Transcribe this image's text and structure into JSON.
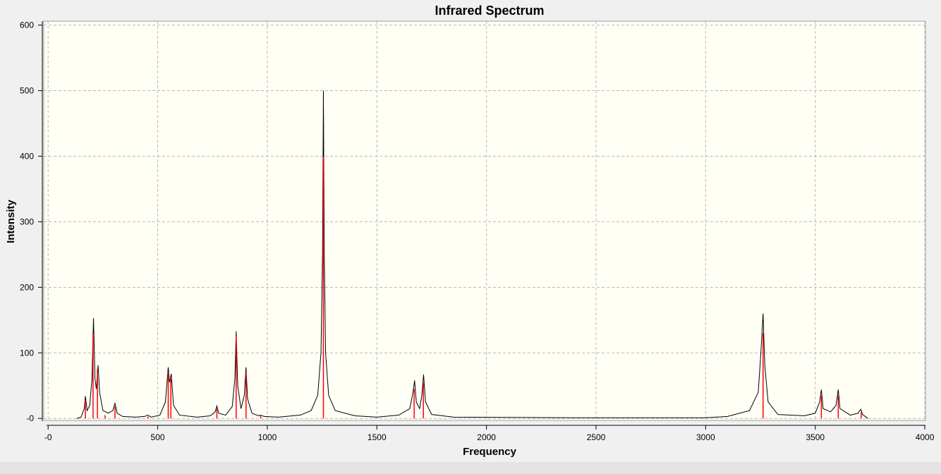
{
  "chart_data": {
    "type": "spectrum",
    "title": "Infrared Spectrum",
    "x_label": "Frequency",
    "y_label": "Intensity",
    "xlim": [
      -20,
      4003
    ],
    "ylim": [
      -3,
      606
    ],
    "xticks": [
      {
        "value": 0,
        "label": "-0"
      },
      500,
      1000,
      1500,
      2000,
      2500,
      3000,
      3500,
      4000
    ],
    "yticks": [
      {
        "value": 0,
        "label": "-0"
      },
      100,
      200,
      300,
      400,
      500,
      600
    ],
    "grid": true,
    "sticks": {
      "color": "#ff0000",
      "x": [
        170,
        205,
        225,
        260,
        305,
        455,
        548,
        560,
        770,
        858,
        903,
        970,
        1256,
        1670,
        1712,
        3262,
        3528,
        3605,
        3710
      ],
      "values": [
        28,
        130,
        75,
        5,
        18,
        3,
        70,
        60,
        15,
        125,
        70,
        4,
        400,
        45,
        55,
        130,
        35,
        35,
        10
      ]
    },
    "curve": {
      "color": "#000000",
      "x": [
        130,
        150,
        165,
        170,
        178,
        190,
        200,
        207,
        214,
        220,
        228,
        235,
        250,
        275,
        295,
        305,
        315,
        340,
        400,
        440,
        455,
        470,
        510,
        535,
        548,
        554,
        562,
        572,
        600,
        680,
        740,
        762,
        770,
        778,
        810,
        840,
        852,
        858,
        865,
        880,
        895,
        903,
        910,
        930,
        960,
        970,
        985,
        1050,
        1150,
        1200,
        1230,
        1245,
        1252,
        1256,
        1260,
        1266,
        1280,
        1310,
        1400,
        1500,
        1600,
        1650,
        1665,
        1672,
        1680,
        1695,
        1705,
        1713,
        1722,
        1750,
        1850,
        2400,
        3000,
        3100,
        3200,
        3240,
        3252,
        3262,
        3270,
        3285,
        3330,
        3450,
        3500,
        3520,
        3528,
        3536,
        3570,
        3595,
        3605,
        3613,
        3660,
        3695,
        3708,
        3716,
        3740
      ],
      "values": [
        0,
        2,
        15,
        34,
        12,
        20,
        60,
        153,
        60,
        45,
        81,
        40,
        12,
        8,
        12,
        23,
        8,
        3,
        2,
        3,
        5,
        2,
        5,
        25,
        78,
        55,
        68,
        20,
        5,
        2,
        4,
        10,
        19,
        8,
        5,
        18,
        60,
        133,
        50,
        15,
        35,
        78,
        30,
        8,
        4,
        5,
        3,
        2,
        5,
        12,
        35,
        100,
        250,
        500,
        250,
        100,
        35,
        12,
        4,
        2,
        5,
        15,
        40,
        58,
        25,
        15,
        35,
        67,
        25,
        6,
        2,
        1,
        1,
        3,
        12,
        40,
        100,
        160,
        80,
        25,
        6,
        4,
        8,
        25,
        44,
        15,
        10,
        20,
        44,
        15,
        5,
        8,
        14,
        6,
        0
      ]
    }
  }
}
